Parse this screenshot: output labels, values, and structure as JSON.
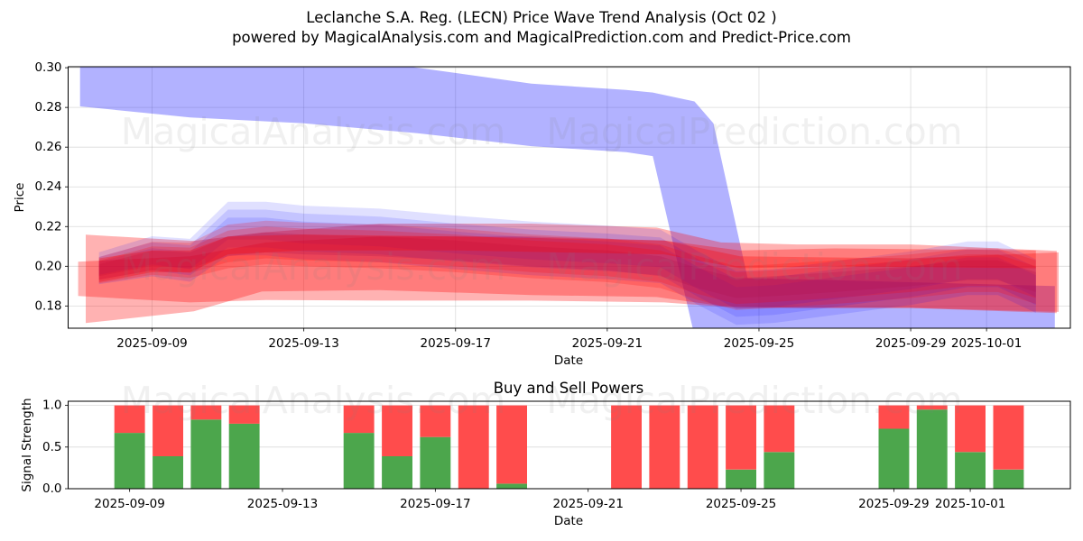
{
  "title": {
    "line1": "Leclanche S.A. Reg. (LECN) Price Wave Trend Analysis (Oct 02 )",
    "line2": "powered by MagicalAnalysis.com and MagicalPrediction.com and Predict-Price.com"
  },
  "watermarks": [
    "MagicalAnalysis.com",
    "MagicalPrediction.com"
  ],
  "chart_data": [
    {
      "type": "area",
      "title": "",
      "xlabel": "Date",
      "ylabel": "Price",
      "xlim": [
        "2025-09-06T18:52",
        "2025-10-03T05:02"
      ],
      "ylim": [
        0.1688,
        0.3005
      ],
      "grid": true,
      "xticks": [
        {
          "x": "2025-09-09",
          "label": "2025-09-09"
        },
        {
          "x": "2025-09-13",
          "label": "2025-09-13"
        },
        {
          "x": "2025-09-17",
          "label": "2025-09-17"
        },
        {
          "x": "2025-09-21",
          "label": "2025-09-21"
        },
        {
          "x": "2025-09-25",
          "label": "2025-09-25"
        },
        {
          "x": "2025-09-29",
          "label": "2025-09-29"
        },
        {
          "x": "2025-10-01",
          "label": "2025-10-01"
        }
      ],
      "yticks": [
        {
          "y": 0.18,
          "label": "0.18"
        },
        {
          "y": 0.2,
          "label": "0.20"
        },
        {
          "y": 0.22,
          "label": "0.22"
        },
        {
          "y": 0.24,
          "label": "0.24"
        },
        {
          "y": 0.26,
          "label": "0.26"
        },
        {
          "y": 0.28,
          "label": "0.28"
        },
        {
          "y": 0.3,
          "label": "0.30"
        }
      ],
      "series": [
        {
          "name": "blue-main-band",
          "color": "#0000ff",
          "opacity": 0.3,
          "x": [
            "2025-09-07T02:24",
            "2025-09-10",
            "2025-09-13",
            "2025-09-16",
            "2025-09-19",
            "2025-09-21T12:00",
            "2025-09-22T04:48",
            "2025-09-23T07:12",
            "2025-09-23T19:12",
            "2025-09-24T16:48",
            "2025-09-27",
            "2025-10-02T19:12"
          ],
          "lower": [
            0.2805,
            0.275,
            0.272,
            0.267,
            0.2605,
            0.2575,
            0.2555,
            0.165,
            0.16,
            0.16,
            0.16,
            0.16
          ],
          "upper": [
            0.315,
            0.312,
            0.308,
            0.3,
            0.292,
            0.2888,
            0.2875,
            0.283,
            0.272,
            0.194,
            0.193,
            0.19
          ]
        },
        {
          "name": "red-outer-band-1",
          "color": "#ff0000",
          "opacity": 0.3,
          "x": [
            "2025-09-07T06:00",
            "2025-09-10T02:24",
            "2025-09-11T21:36",
            "2025-09-15",
            "2025-09-19",
            "2025-09-22T07:12",
            "2025-09-24",
            "2025-09-26",
            "2025-09-29",
            "2025-10-02T20:24"
          ],
          "lower": [
            0.1714,
            0.1773,
            0.1873,
            0.188,
            0.1855,
            0.1845,
            0.18,
            0.179,
            0.179,
            0.1764
          ],
          "upper": [
            0.2159,
            0.2127,
            0.217,
            0.2215,
            0.2215,
            0.2195,
            0.212,
            0.211,
            0.211,
            0.2077
          ]
        },
        {
          "name": "red-outer-band-2",
          "color": "#ff0000",
          "opacity": 0.3,
          "x": [
            "2025-09-07T01:12",
            "2025-09-10",
            "2025-09-12",
            "2025-09-15",
            "2025-09-19",
            "2025-09-22T12:00",
            "2025-09-24T12:00",
            "2025-09-29",
            "2025-10-02T21:36"
          ],
          "lower": [
            0.185,
            0.1818,
            0.183,
            0.1827,
            0.1827,
            0.1818,
            0.179,
            0.179,
            0.177
          ],
          "upper": [
            0.2023,
            0.205,
            0.212,
            0.215,
            0.215,
            0.213,
            0.205,
            0.204,
            0.207
          ]
        },
        {
          "name": "blue-wave-band-1",
          "color": "#0000ff",
          "opacity": 0.12,
          "x": [
            "2025-09-07T14:24",
            "2025-09-09",
            "2025-09-10",
            "2025-09-11",
            "2025-09-12",
            "2025-09-13",
            "2025-09-15",
            "2025-09-17",
            "2025-09-19",
            "2025-09-21",
            "2025-09-22T09:36",
            "2025-09-23T09:36",
            "2025-09-24T09:36",
            "2025-09-25T09:36",
            "2025-09-27",
            "2025-09-29",
            "2025-09-30T12:00",
            "2025-10-01T07:12",
            "2025-10-02T07:12"
          ],
          "lower": [
            0.1909,
            0.1949,
            0.1922,
            0.2055,
            0.2055,
            0.2035,
            0.202,
            0.1985,
            0.1955,
            0.1935,
            0.1915,
            0.1805,
            0.1705,
            0.1715,
            0.1755,
            0.1805,
            0.1855,
            0.1855,
            0.1765
          ],
          "upper": [
            0.2071,
            0.2151,
            0.2138,
            0.2325,
            0.2325,
            0.2305,
            0.229,
            0.2255,
            0.2225,
            0.2205,
            0.2185,
            0.2075,
            0.1975,
            0.1985,
            0.2025,
            0.2075,
            0.2125,
            0.2125,
            0.2035
          ]
        },
        {
          "name": "blue-wave-band-2",
          "color": "#0000ff",
          "opacity": 0.12,
          "x": [
            "2025-09-07T14:24",
            "2025-09-09",
            "2025-09-10",
            "2025-09-11",
            "2025-09-12",
            "2025-09-13",
            "2025-09-15",
            "2025-09-17",
            "2025-09-19",
            "2025-09-21",
            "2025-09-22T09:36",
            "2025-09-23T09:36",
            "2025-09-24T09:36",
            "2025-09-25T09:36",
            "2025-09-27",
            "2025-09-29",
            "2025-09-30T12:00",
            "2025-10-01T07:12",
            "2025-10-02T07:12"
          ],
          "lower": [
            0.1933,
            0.1979,
            0.1954,
            0.2095,
            0.2095,
            0.2075,
            0.206,
            0.2025,
            0.1995,
            0.1975,
            0.1955,
            0.1845,
            0.1745,
            0.1755,
            0.1795,
            0.1845,
            0.1895,
            0.1895,
            0.1805
          ],
          "upper": [
            0.2047,
            0.2121,
            0.2106,
            0.2285,
            0.2285,
            0.2265,
            0.225,
            0.2215,
            0.2185,
            0.2165,
            0.2145,
            0.2035,
            0.1935,
            0.1945,
            0.1985,
            0.2035,
            0.2085,
            0.2085,
            0.1995
          ]
        },
        {
          "name": "blue-wave-band-3",
          "color": "#0000ff",
          "opacity": 0.12,
          "x": [
            "2025-09-07T14:24",
            "2025-09-09",
            "2025-09-10",
            "2025-09-11",
            "2025-09-12",
            "2025-09-13",
            "2025-09-15",
            "2025-09-17",
            "2025-09-19",
            "2025-09-21",
            "2025-09-22T09:36",
            "2025-09-23T09:36",
            "2025-09-24T09:36",
            "2025-09-25T09:36",
            "2025-09-27",
            "2025-09-29",
            "2025-09-30T12:00",
            "2025-10-01T07:12",
            "2025-10-02T07:12"
          ],
          "lower": [
            0.1957,
            0.2009,
            0.1986,
            0.2135,
            0.2135,
            0.2115,
            0.21,
            0.2065,
            0.2035,
            0.2015,
            0.1995,
            0.1885,
            0.1785,
            0.1795,
            0.1835,
            0.1885,
            0.1935,
            0.1935,
            0.1845
          ],
          "upper": [
            0.2023,
            0.2091,
            0.2074,
            0.2245,
            0.2245,
            0.2225,
            0.221,
            0.2175,
            0.2145,
            0.2125,
            0.2105,
            0.1995,
            0.1895,
            0.1905,
            0.1945,
            0.1995,
            0.2045,
            0.2045,
            0.1955
          ]
        },
        {
          "name": "red-wave-band-1",
          "color": "#ff0000",
          "opacity": 0.2,
          "x": [
            "2025-09-07T14:24",
            "2025-09-09",
            "2025-09-10",
            "2025-09-11",
            "2025-09-12",
            "2025-09-13",
            "2025-09-15",
            "2025-09-17",
            "2025-09-19",
            "2025-09-21",
            "2025-09-22T09:36",
            "2025-09-23T09:36",
            "2025-09-24T09:36",
            "2025-09-25T09:36",
            "2025-09-27",
            "2025-09-29",
            "2025-09-30T12:00",
            "2025-10-01T07:12",
            "2025-10-02T07:12"
          ],
          "lower": [
            0.1914,
            0.1957,
            0.1942,
            0.199,
            0.201,
            0.2,
            0.199,
            0.197,
            0.194,
            0.192,
            0.189,
            0.183,
            0.178,
            0.179,
            0.181,
            0.184,
            0.187,
            0.187,
            0.181
          ],
          "upper": [
            0.2046,
            0.2123,
            0.2118,
            0.221,
            0.223,
            0.222,
            0.221,
            0.219,
            0.216,
            0.214,
            0.211,
            0.205,
            0.2,
            0.201,
            0.203,
            0.206,
            0.209,
            0.209,
            0.203
          ]
        },
        {
          "name": "red-wave-band-2",
          "color": "#ff0000",
          "opacity": 0.2,
          "x": [
            "2025-09-07T14:24",
            "2025-09-09",
            "2025-09-10",
            "2025-09-11",
            "2025-09-12",
            "2025-09-13",
            "2025-09-15",
            "2025-09-17",
            "2025-09-19",
            "2025-09-21",
            "2025-09-22T09:36",
            "2025-09-23T09:36",
            "2025-09-24T09:36",
            "2025-09-25T09:36",
            "2025-09-27",
            "2025-09-29",
            "2025-09-30T12:00",
            "2025-10-01T07:12",
            "2025-10-02T07:12"
          ],
          "lower": [
            0.1932,
            0.198,
            0.1966,
            0.202,
            0.204,
            0.203,
            0.202,
            0.2,
            0.197,
            0.195,
            0.192,
            0.186,
            0.181,
            0.182,
            0.184,
            0.187,
            0.19,
            0.19,
            0.184
          ],
          "upper": [
            0.2028,
            0.21,
            0.2094,
            0.218,
            0.22,
            0.219,
            0.218,
            0.216,
            0.213,
            0.211,
            0.208,
            0.202,
            0.197,
            0.198,
            0.2,
            0.203,
            0.206,
            0.206,
            0.2
          ]
        },
        {
          "name": "red-wave-band-3",
          "color": "#b0104f",
          "opacity": 0.25,
          "x": [
            "2025-09-07T14:24",
            "2025-09-09",
            "2025-09-10",
            "2025-09-11",
            "2025-09-12",
            "2025-09-13",
            "2025-09-15",
            "2025-09-17",
            "2025-09-19",
            "2025-09-21",
            "2025-09-22T09:36",
            "2025-09-23T09:36",
            "2025-09-24T09:36",
            "2025-09-25T09:36",
            "2025-09-27",
            "2025-09-29",
            "2025-09-30T12:00",
            "2025-10-01T07:12",
            "2025-10-02T07:12"
          ],
          "lower": [
            0.195,
            0.2002,
            0.199,
            0.205,
            0.207,
            0.206,
            0.205,
            0.203,
            0.2,
            0.198,
            0.195,
            0.189,
            0.184,
            0.185,
            0.187,
            0.19,
            0.193,
            0.193,
            0.187
          ],
          "upper": [
            0.201,
            0.2078,
            0.207,
            0.215,
            0.217,
            0.216,
            0.215,
            0.213,
            0.21,
            0.208,
            0.205,
            0.199,
            0.194,
            0.195,
            0.197,
            0.2,
            0.203,
            0.203,
            0.197
          ]
        },
        {
          "name": "red-core-band",
          "color": "#ff0000",
          "opacity": 0.3,
          "x": [
            "2025-09-07T14:24",
            "2025-09-09",
            "2025-09-10",
            "2025-09-11",
            "2025-09-13",
            "2025-09-17",
            "2025-09-22T12:00",
            "2025-09-24T12:00",
            "2025-09-27",
            "2025-10-02T07:12"
          ],
          "lower": [
            0.192,
            0.197,
            0.197,
            0.206,
            0.208,
            0.208,
            0.206,
            0.199,
            0.2,
            0.199
          ],
          "upper": [
            0.204,
            0.208,
            0.208,
            0.215,
            0.216,
            0.215,
            0.213,
            0.208,
            0.209,
            0.208
          ]
        }
      ]
    },
    {
      "type": "bar",
      "stacked": true,
      "title": "Buy and Sell Powers",
      "xlabel": "Date",
      "ylabel": "Signal Strength",
      "xlim": [
        "2025-09-07T09:22",
        "2025-10-03T14:53"
      ],
      "ylim": [
        0,
        1.05
      ],
      "grid": true,
      "xticks": [
        {
          "x": "2025-09-09",
          "label": "2025-09-09"
        },
        {
          "x": "2025-09-13",
          "label": "2025-09-13"
        },
        {
          "x": "2025-09-17",
          "label": "2025-09-17"
        },
        {
          "x": "2025-09-21",
          "label": "2025-09-21"
        },
        {
          "x": "2025-09-25",
          "label": "2025-09-25"
        },
        {
          "x": "2025-09-29",
          "label": "2025-09-29"
        },
        {
          "x": "2025-10-01",
          "label": "2025-10-01"
        }
      ],
      "yticks": [
        {
          "y": 0.0,
          "label": "0.0"
        },
        {
          "y": 0.5,
          "label": "0.5"
        },
        {
          "y": 1.0,
          "label": "1.0"
        }
      ],
      "categories": [
        "2025-09-09",
        "2025-09-10",
        "2025-09-11",
        "2025-09-12",
        "2025-09-15",
        "2025-09-16",
        "2025-09-17",
        "2025-09-18",
        "2025-09-19",
        "2025-09-22",
        "2025-09-23",
        "2025-09-24",
        "2025-09-25",
        "2025-09-26",
        "2025-09-29",
        "2025-09-30",
        "2025-10-01",
        "2025-10-02"
      ],
      "series": [
        {
          "name": "Buy",
          "color": "#4ca64c",
          "values": [
            0.67,
            0.39,
            0.83,
            0.78,
            0.67,
            0.39,
            0.62,
            0.0,
            0.06,
            0.0,
            0.0,
            0.0,
            0.23,
            0.44,
            0.72,
            0.95,
            0.44,
            0.23
          ]
        },
        {
          "name": "Sell",
          "color": "#ff4c4c",
          "values": [
            0.33,
            0.61,
            0.17,
            0.22,
            0.33,
            0.61,
            0.38,
            1.0,
            0.94,
            1.0,
            1.0,
            1.0,
            0.77,
            0.56,
            0.28,
            0.05,
            0.56,
            0.77
          ]
        }
      ]
    }
  ]
}
